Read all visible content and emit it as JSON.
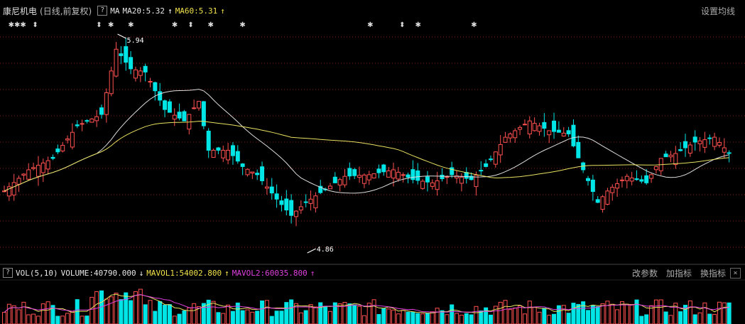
{
  "header": {
    "stock_name": "康尼机电",
    "period": "(日线,前复权)",
    "help_label": "?",
    "indicator": "MA",
    "ma20_label": "MA20:5.32",
    "ma20_arrow": "↑",
    "ma60_label": "MA60:5.31",
    "ma60_arrow": "↑",
    "settings_label": "设置均线"
  },
  "volume_panel": {
    "help_label": "?",
    "indicator": "VOL(5,10)",
    "volume_label": "VOLUME:40790.000",
    "volume_arrow": "↓",
    "mavol1_label": "MAVOL1:54002.800",
    "mavol1_arrow": "↑",
    "mavol2_label": "MAVOL2:60035.800",
    "mavol2_arrow": "↑",
    "btn_params": "改参数",
    "btn_add": "加指标",
    "btn_switch": "换指标",
    "close_label": "×"
  },
  "colors": {
    "up": "#ff5050",
    "down": "#00e6e6",
    "ma20": "#dddddd",
    "ma60": "#e8e060",
    "mavol2": "#e040e0",
    "grid": "#8a1a1a"
  },
  "chart_data": {
    "type": "candlestick",
    "price_range": [
      4.6,
      6.1
    ],
    "high_label": "5.94",
    "low_label": "4.86",
    "markers": [
      {
        "text": "✱✱✱",
        "index": 1
      },
      {
        "text": "⬍",
        "index": 7
      },
      {
        "text": "⬍",
        "index": 23
      },
      {
        "text": "✱",
        "index": 26
      },
      {
        "text": "✱",
        "index": 31
      },
      {
        "text": "✱",
        "index": 42
      },
      {
        "text": "⬍",
        "index": 46
      },
      {
        "text": "✱",
        "index": 51
      },
      {
        "text": "✱",
        "index": 59
      },
      {
        "text": "✱",
        "index": 91
      },
      {
        "text": "⬍",
        "index": 99
      },
      {
        "text": "✱",
        "index": 103
      },
      {
        "text": "✱",
        "index": 117
      }
    ]
  }
}
